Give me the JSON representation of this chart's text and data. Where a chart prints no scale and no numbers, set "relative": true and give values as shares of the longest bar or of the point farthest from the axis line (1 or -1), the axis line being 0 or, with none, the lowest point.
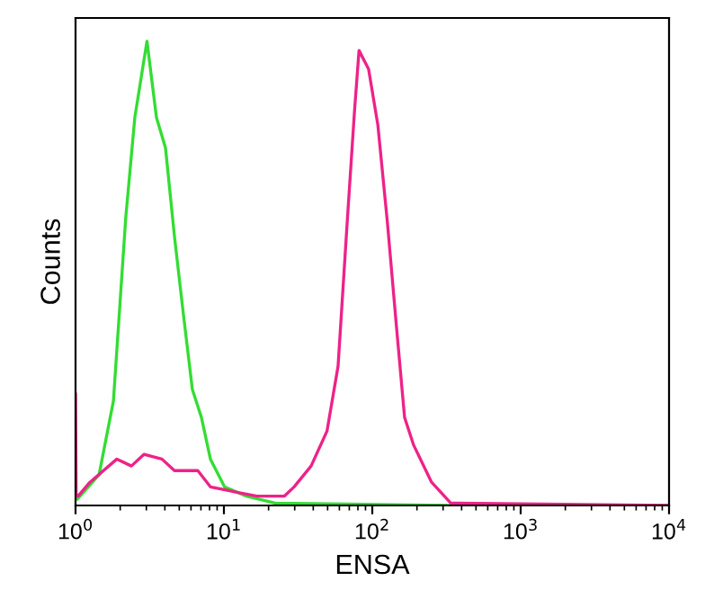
{
  "chart_data": {
    "type": "line",
    "relative": true,
    "xlabel": "ENSA",
    "ylabel": "Counts",
    "log": "x",
    "xlim": [
      1,
      10000
    ],
    "xticks": [
      {
        "value": 1,
        "label": "10$^{0}$"
      },
      {
        "value": 10,
        "label": "10$^{1}$"
      },
      {
        "value": 100,
        "label": "10$^{2}$"
      },
      {
        "value": 1000,
        "label": "10$^{3}$"
      },
      {
        "value": 10000,
        "label": "10$^{4}$"
      }
    ],
    "grid": false,
    "legend": false,
    "marker": "none",
    "line_style": "solid",
    "series": [
      {
        "color": "#33dd33",
        "x": [
          1.03,
          1.44,
          1.8,
          2.18,
          2.51,
          3.03,
          3.51,
          4.04,
          4.64,
          5.34,
          6.13,
          7.05,
          8.11,
          10.1,
          14.2,
          22.1,
          351,
          10000
        ],
        "values": [
          0.014,
          0.066,
          0.225,
          0.62,
          0.836,
          1.0,
          0.836,
          0.77,
          0.58,
          0.41,
          0.25,
          0.19,
          0.1,
          0.04,
          0.02,
          0.005,
          0,
          0
        ]
      },
      {
        "color": "#ee2288",
        "x": [
          1.0,
          1.01,
          1.04,
          1.25,
          1.9,
          2.38,
          2.89,
          3.82,
          4.64,
          6.67,
          8.11,
          11.6,
          16.7,
          25.5,
          29.7,
          38.7,
          49.5,
          58.8,
          67.9,
          75.9,
          81.4,
          94.4,
          109,
          126,
          146,
          165,
          190,
          251,
          338,
          10000
        ],
        "values": [
          0.24,
          0.02,
          0.02,
          0.05,
          0.1,
          0.085,
          0.11,
          0.1,
          0.075,
          0.075,
          0.04,
          0.03,
          0.02,
          0.02,
          0.04,
          0.085,
          0.16,
          0.3,
          0.615,
          0.85,
          0.98,
          0.94,
          0.82,
          0.615,
          0.38,
          0.19,
          0.13,
          0.05,
          0.005,
          0
        ]
      }
    ]
  }
}
